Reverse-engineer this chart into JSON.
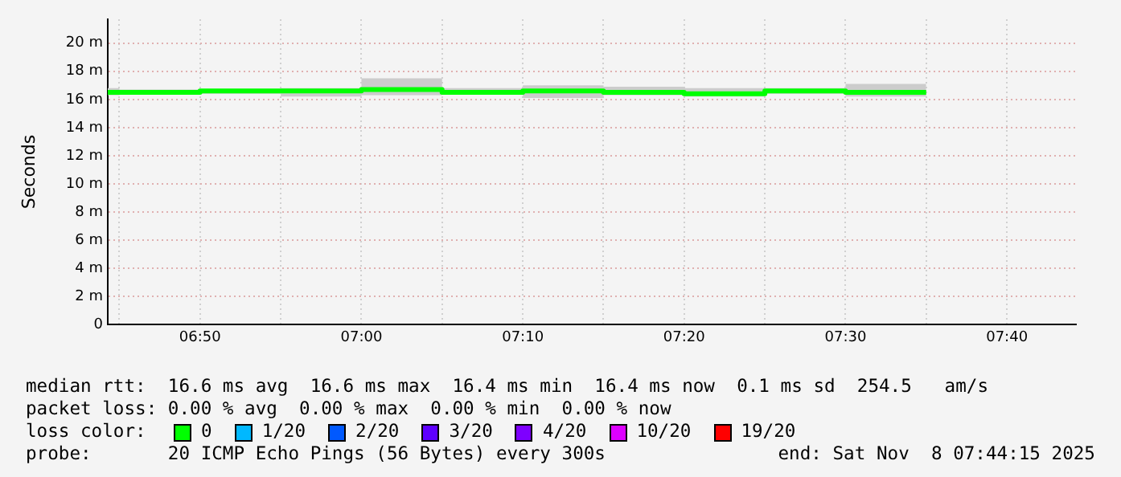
{
  "chart_data": {
    "type": "step",
    "ylabel": "Seconds",
    "x": [
      6.738,
      6.75,
      6.8333,
      6.9167,
      7.0,
      7.0833,
      7.1667,
      7.25,
      7.3333,
      7.4167,
      7.5,
      7.5833
    ],
    "series": [
      {
        "color": "#00ff00",
        "values": [
          16.5,
          16.5,
          16.6,
          16.6,
          16.7,
          16.5,
          16.6,
          16.5,
          16.4,
          16.6,
          16.5,
          16.5
        ],
        "lower": [
          16.3,
          16.4,
          16.4,
          16.2,
          16.3,
          16.4,
          16.1,
          16.3,
          16.2,
          16.4,
          16.2,
          16.2
        ],
        "upper": [
          16.8,
          16.7,
          16.7,
          16.8,
          17.5,
          16.8,
          17.0,
          16.9,
          16.8,
          16.8,
          17.1,
          17.1
        ]
      }
    ],
    "xlim": [
      6.738,
      7.738
    ],
    "xticks": [
      {
        "value": 6.75,
        "label": null
      },
      {
        "value": 6.8333,
        "label": "06:50"
      },
      {
        "value": 6.9167,
        "label": null
      },
      {
        "value": 7.0,
        "label": "07:00"
      },
      {
        "value": 7.0833,
        "label": null
      },
      {
        "value": 7.1667,
        "label": "07:10"
      },
      {
        "value": 7.25,
        "label": null
      },
      {
        "value": 7.3333,
        "label": "07:20"
      },
      {
        "value": 7.4167,
        "label": null
      },
      {
        "value": 7.5,
        "label": "07:30"
      },
      {
        "value": 7.5833,
        "label": null
      },
      {
        "value": 7.6667,
        "label": "07:40"
      }
    ],
    "ylim": [
      0,
      21.7
    ],
    "yticks": [
      {
        "value": 0,
        "label": "0"
      },
      {
        "value": 2,
        "label": "2 m"
      },
      {
        "value": 4,
        "label": "4 m"
      },
      {
        "value": 6,
        "label": "6 m"
      },
      {
        "value": 8,
        "label": "8 m"
      },
      {
        "value": 10,
        "label": "10 m"
      },
      {
        "value": 12,
        "label": "12 m"
      },
      {
        "value": 14,
        "label": "14 m"
      },
      {
        "value": 16,
        "label": "16 m"
      },
      {
        "value": 18,
        "label": "18 m"
      },
      {
        "value": 20,
        "label": "20 m"
      }
    ],
    "grid": true,
    "legend": false,
    "annotations": [
      "median rtt:  16.6 ms avg  16.6 ms max  16.4 ms min  16.4 ms now  0.1 ms sd  254.5   am/s",
      "packet loss: 0.00 % avg  0.00 % max  0.00 % min  0.00 % now",
      "loss color:",
      "0",
      "1/20",
      "2/20",
      "3/20",
      "4/20",
      "10/20",
      "19/20",
      "probe:       20 ICMP Echo Pings (56 Bytes) every 300s",
      "end: Sat Nov  8 07:44:15 2025"
    ]
  }
}
